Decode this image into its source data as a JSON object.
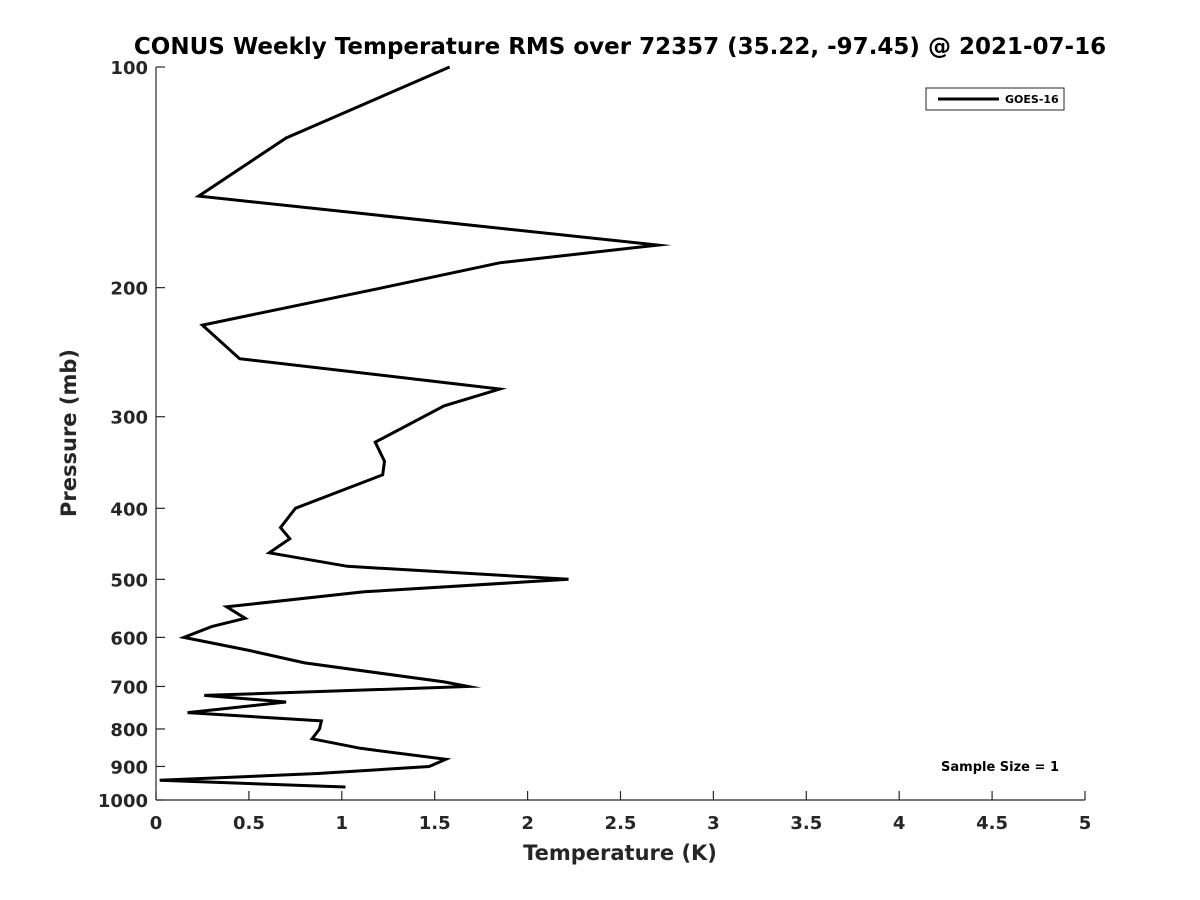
{
  "chart_data": {
    "type": "line",
    "title": "CONUS Weekly Temperature RMS over 72357 (35.22, -97.45) @ 2021-07-16",
    "xlabel": "Temperature (K)",
    "ylabel": "Pressure (mb)",
    "xlim": [
      0,
      5
    ],
    "ylim": [
      100,
      1000
    ],
    "y_scale": "log",
    "y_reversed": true,
    "x_ticks": [
      0,
      0.5,
      1,
      1.5,
      2,
      2.5,
      3,
      3.5,
      4,
      4.5,
      5
    ],
    "x_tick_labels": [
      "0",
      "0.5",
      "1",
      "1.5",
      "2",
      "2.5",
      "3",
      "3.5",
      "4",
      "4.5",
      "5"
    ],
    "y_ticks": [
      100,
      200,
      300,
      400,
      500,
      600,
      700,
      800,
      900,
      1000
    ],
    "y_tick_labels": [
      "100",
      "200",
      "300",
      "400",
      "500",
      "600",
      "700",
      "800",
      "900",
      "1000"
    ],
    "grid": false,
    "legend_position": "top-right",
    "annotation": "Sample Size = 1",
    "series": [
      {
        "name": "GOES-16",
        "color": "#000000",
        "points": [
          {
            "x": 1.58,
            "y": 100
          },
          {
            "x": 0.7,
            "y": 125
          },
          {
            "x": 0.23,
            "y": 150
          },
          {
            "x": 2.7,
            "y": 175
          },
          {
            "x": 1.85,
            "y": 185
          },
          {
            "x": 1.22,
            "y": 200
          },
          {
            "x": 0.25,
            "y": 225
          },
          {
            "x": 0.45,
            "y": 250
          },
          {
            "x": 1.85,
            "y": 275
          },
          {
            "x": 1.55,
            "y": 290
          },
          {
            "x": 1.18,
            "y": 325
          },
          {
            "x": 1.23,
            "y": 345
          },
          {
            "x": 1.22,
            "y": 360
          },
          {
            "x": 0.75,
            "y": 400
          },
          {
            "x": 0.67,
            "y": 425
          },
          {
            "x": 0.72,
            "y": 440
          },
          {
            "x": 0.61,
            "y": 460
          },
          {
            "x": 1.03,
            "y": 480
          },
          {
            "x": 2.22,
            "y": 500
          },
          {
            "x": 1.12,
            "y": 520
          },
          {
            "x": 0.38,
            "y": 545
          },
          {
            "x": 0.48,
            "y": 565
          },
          {
            "x": 0.3,
            "y": 580
          },
          {
            "x": 0.15,
            "y": 600
          },
          {
            "x": 0.5,
            "y": 625
          },
          {
            "x": 0.8,
            "y": 650
          },
          {
            "x": 1.55,
            "y": 690
          },
          {
            "x": 1.68,
            "y": 700
          },
          {
            "x": 0.26,
            "y": 720
          },
          {
            "x": 0.7,
            "y": 735
          },
          {
            "x": 0.17,
            "y": 760
          },
          {
            "x": 0.89,
            "y": 780
          },
          {
            "x": 0.88,
            "y": 800
          },
          {
            "x": 0.84,
            "y": 825
          },
          {
            "x": 1.1,
            "y": 850
          },
          {
            "x": 1.56,
            "y": 880
          },
          {
            "x": 1.47,
            "y": 900
          },
          {
            "x": 0.87,
            "y": 920
          },
          {
            "x": 0.02,
            "y": 940
          },
          {
            "x": 1.02,
            "y": 960
          }
        ]
      }
    ]
  }
}
